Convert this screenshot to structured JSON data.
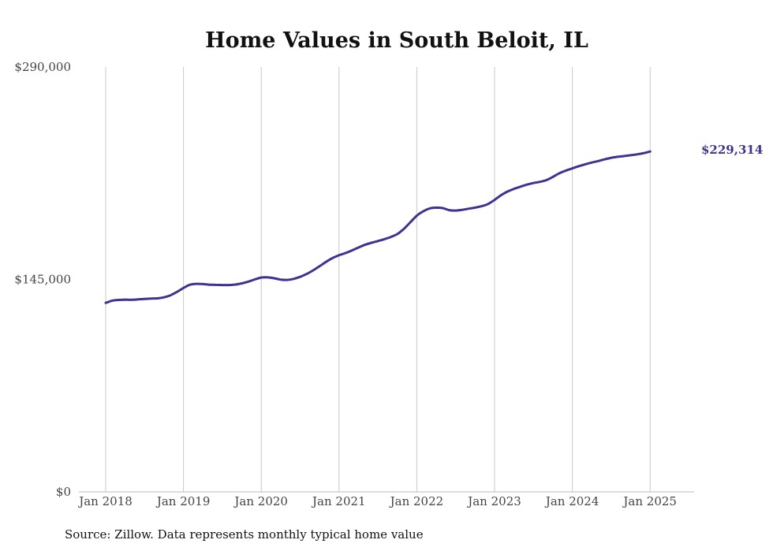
{
  "chart_data": {
    "type": "line",
    "title": "Home Values in South Beloit, IL",
    "source_note": "Source: Zillow. Data represents monthly typical home value",
    "ylim": [
      0,
      290000
    ],
    "ytick_labels": [
      "$0",
      "$145,000",
      "$290,000"
    ],
    "ytick_values": [
      0,
      145000,
      290000
    ],
    "xtick_labels": [
      "Jan 2018",
      "Jan 2019",
      "Jan 2020",
      "Jan 2021",
      "Jan 2022",
      "Jan 2023",
      "Jan 2024",
      "Jan 2025"
    ],
    "xtick_dates": [
      "2018-01",
      "2019-01",
      "2020-01",
      "2021-01",
      "2022-01",
      "2023-01",
      "2024-01",
      "2025-01"
    ],
    "x_range": [
      "2018-01",
      "2025-07"
    ],
    "grid": "vertical",
    "series": [
      {
        "color": "#3d3391",
        "end_label": "$229,314",
        "points": [
          [
            "2018-01",
            129000
          ],
          [
            "2018-02",
            130500
          ],
          [
            "2018-03",
            131000
          ],
          [
            "2018-04",
            131200
          ],
          [
            "2018-05",
            131100
          ],
          [
            "2018-06",
            131400
          ],
          [
            "2018-07",
            131700
          ],
          [
            "2018-08",
            132000
          ],
          [
            "2018-09",
            132100
          ],
          [
            "2018-10",
            132800
          ],
          [
            "2018-11",
            134200
          ],
          [
            "2018-12",
            136500
          ],
          [
            "2019-01",
            139200
          ],
          [
            "2019-02",
            141400
          ],
          [
            "2019-03",
            142000
          ],
          [
            "2019-04",
            141800
          ],
          [
            "2019-05",
            141400
          ],
          [
            "2019-06",
            141300
          ],
          [
            "2019-07",
            141200
          ],
          [
            "2019-08",
            141200
          ],
          [
            "2019-09",
            141500
          ],
          [
            "2019-10",
            142300
          ],
          [
            "2019-11",
            143500
          ],
          [
            "2019-12",
            145000
          ],
          [
            "2020-01",
            146300
          ],
          [
            "2020-02",
            146400
          ],
          [
            "2020-03",
            145800
          ],
          [
            "2020-04",
            144900
          ],
          [
            "2020-05",
            144700
          ],
          [
            "2020-06",
            145400
          ],
          [
            "2020-07",
            146800
          ],
          [
            "2020-08",
            148700
          ],
          [
            "2020-09",
            151200
          ],
          [
            "2020-10",
            154000
          ],
          [
            "2020-11",
            157000
          ],
          [
            "2020-12",
            159600
          ],
          [
            "2021-01",
            161500
          ],
          [
            "2021-02",
            163000
          ],
          [
            "2021-03",
            164800
          ],
          [
            "2021-04",
            166800
          ],
          [
            "2021-05",
            168600
          ],
          [
            "2021-06",
            170000
          ],
          [
            "2021-07",
            171200
          ],
          [
            "2021-08",
            172500
          ],
          [
            "2021-09",
            174000
          ],
          [
            "2021-10",
            176000
          ],
          [
            "2021-11",
            179500
          ],
          [
            "2021-12",
            184000
          ],
          [
            "2022-01",
            188500
          ],
          [
            "2022-02",
            191500
          ],
          [
            "2022-03",
            193500
          ],
          [
            "2022-04",
            194000
          ],
          [
            "2022-05",
            193700
          ],
          [
            "2022-06",
            192300
          ],
          [
            "2022-07",
            192000
          ],
          [
            "2022-08",
            192500
          ],
          [
            "2022-09",
            193300
          ],
          [
            "2022-10",
            194000
          ],
          [
            "2022-11",
            195000
          ],
          [
            "2022-12",
            196500
          ],
          [
            "2023-01",
            199300
          ],
          [
            "2023-02",
            202500
          ],
          [
            "2023-03",
            205000
          ],
          [
            "2023-04",
            206800
          ],
          [
            "2023-05",
            208300
          ],
          [
            "2023-06",
            209700
          ],
          [
            "2023-07",
            210800
          ],
          [
            "2023-08",
            211600
          ],
          [
            "2023-09",
            212800
          ],
          [
            "2023-10",
            215000
          ],
          [
            "2023-11",
            217500
          ],
          [
            "2023-12",
            219300
          ],
          [
            "2024-01",
            220800
          ],
          [
            "2024-02",
            222300
          ],
          [
            "2024-03",
            223600
          ],
          [
            "2024-04",
            224800
          ],
          [
            "2024-05",
            225800
          ],
          [
            "2024-06",
            227000
          ],
          [
            "2024-07",
            228000
          ],
          [
            "2024-08",
            228700
          ],
          [
            "2024-09",
            229200
          ],
          [
            "2024-10",
            229800
          ],
          [
            "2024-11",
            230400
          ],
          [
            "2024-12",
            231200
          ],
          [
            "2025-01",
            232300
          ]
        ]
      }
    ]
  }
}
